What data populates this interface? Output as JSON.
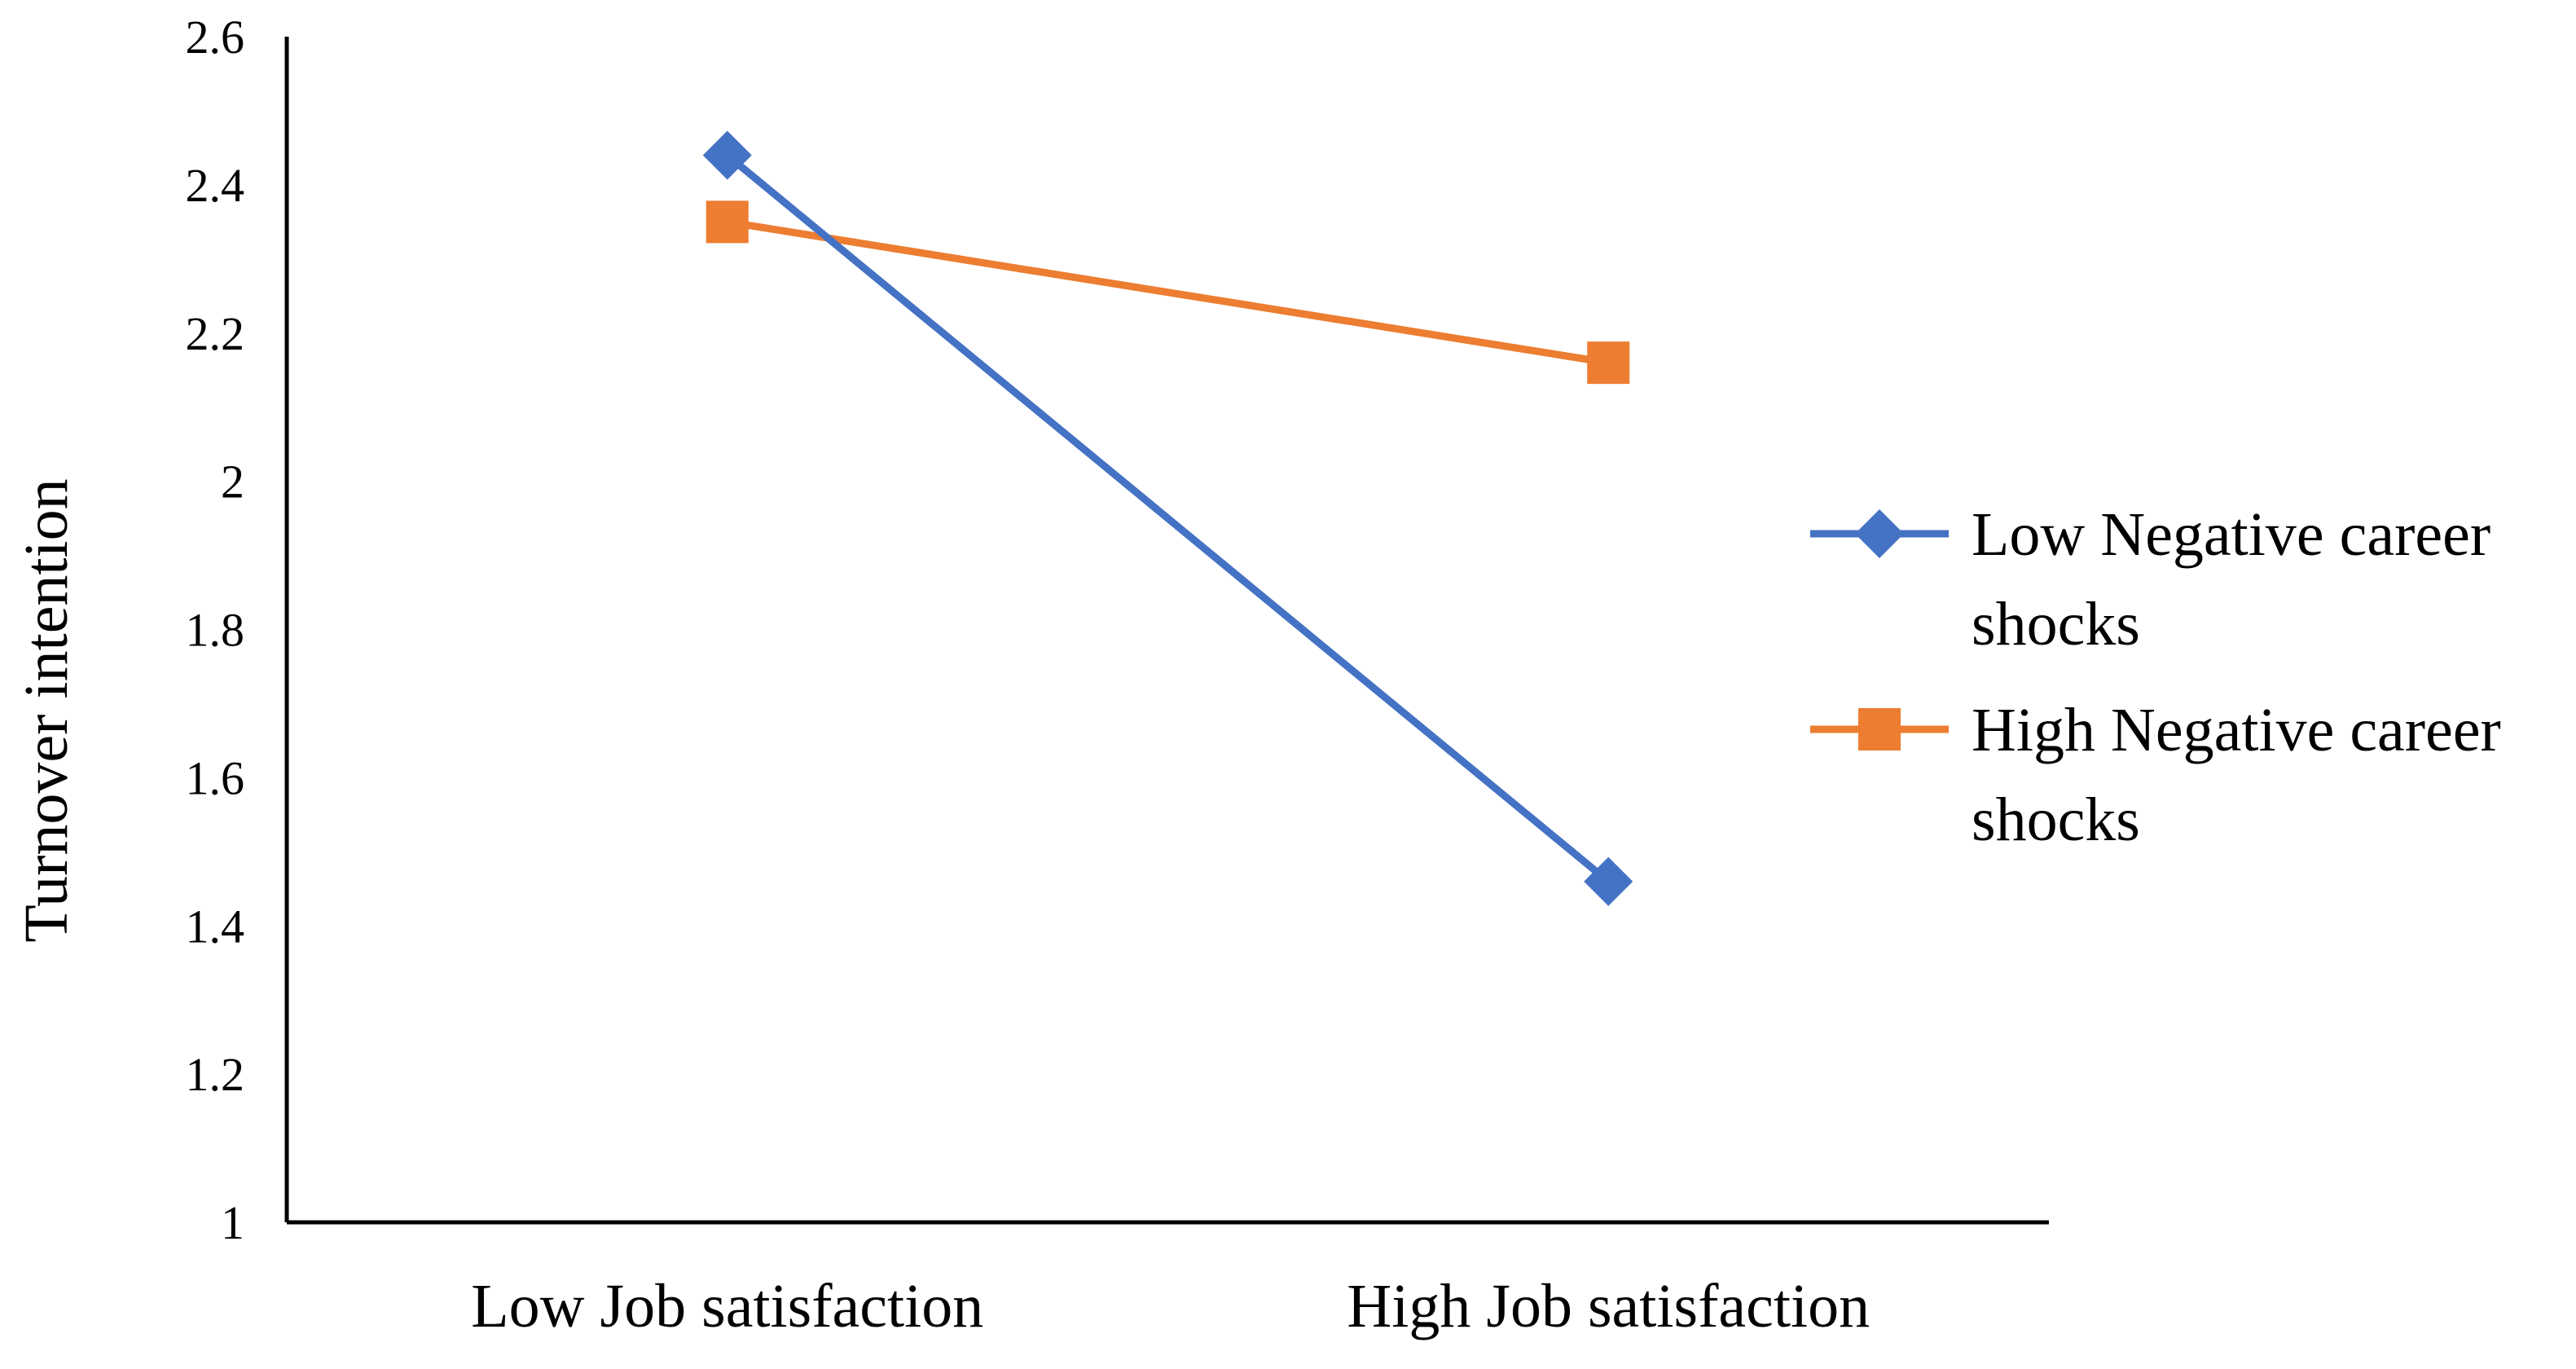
{
  "chart_data": {
    "type": "line",
    "title": "",
    "xlabel": "",
    "ylabel": "Turnover intention",
    "categories": [
      "Low Job satisfaction",
      "High Job satisfaction"
    ],
    "ylim": [
      1,
      2.6
    ],
    "yticks": [
      "1",
      "1.2",
      "1.4",
      "1.6",
      "1.8",
      "2",
      "2.2",
      "2.4",
      "2.6"
    ],
    "grid": false,
    "legend_position": "right",
    "series": [
      {
        "name": "Low Negative career shocks",
        "name_lines": [
          "Low Negative career",
          "shocks"
        ],
        "values": [
          2.44,
          1.46
        ],
        "color": "#4472C4",
        "marker": "diamond"
      },
      {
        "name": "High Negative career shocks",
        "name_lines": [
          "High Negative career",
          "shocks"
        ],
        "values": [
          2.35,
          2.16
        ],
        "color": "#ED7D31",
        "marker": "square"
      }
    ]
  }
}
